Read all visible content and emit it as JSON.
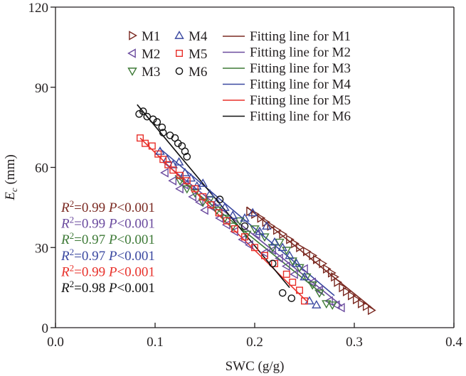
{
  "chart_data": {
    "type": "scatter",
    "title": "",
    "xlabel": "SWC (g/g)",
    "ylabel_main": "E",
    "ylabel_sub": "c",
    "ylabel_unit": " (mm)",
    "xlim": [
      0.0,
      0.4
    ],
    "ylim": [
      0,
      120
    ],
    "xticks": [
      0.0,
      0.1,
      0.2,
      0.3,
      0.4
    ],
    "xtick_labels": [
      "0.0",
      "0.1",
      "0.2",
      "0.3",
      "0.4"
    ],
    "yticks": [
      0,
      30,
      60,
      90,
      120
    ],
    "ytick_labels": [
      "0",
      "30",
      "60",
      "90",
      "120"
    ],
    "grid": false,
    "legend_position": "top-center",
    "series": [
      {
        "name": "M1",
        "marker": "triangle-right",
        "color": "#7b2a22",
        "fit_label": "Fitting line for M1",
        "fit_line": [
          [
            0.192,
            45.2
          ],
          [
            0.321,
            6.4
          ]
        ],
        "stats": {
          "r2": "0.99",
          "p": "0.001"
        },
        "points": [
          [
            0.195,
            43.5
          ],
          [
            0.2,
            42.5
          ],
          [
            0.206,
            41
          ],
          [
            0.211,
            39.5
          ],
          [
            0.216,
            38
          ],
          [
            0.222,
            36.5
          ],
          [
            0.228,
            35
          ],
          [
            0.235,
            33
          ],
          [
            0.24,
            31.5
          ],
          [
            0.245,
            30
          ],
          [
            0.252,
            28.5
          ],
          [
            0.258,
            27
          ],
          [
            0.262,
            25.5
          ],
          [
            0.268,
            24
          ],
          [
            0.272,
            22
          ],
          [
            0.277,
            20.5
          ],
          [
            0.28,
            19
          ],
          [
            0.283,
            17
          ],
          [
            0.288,
            15
          ],
          [
            0.292,
            13.5
          ],
          [
            0.297,
            12
          ],
          [
            0.302,
            10.5
          ],
          [
            0.307,
            9
          ],
          [
            0.312,
            8
          ],
          [
            0.317,
            6.5
          ]
        ]
      },
      {
        "name": "M2",
        "marker": "triangle-left",
        "color": "#6a4a9e",
        "fit_label": "Fitting line for M2",
        "fit_line": [
          [
            0.108,
            62
          ],
          [
            0.288,
            8
          ]
        ],
        "stats": {
          "r2": "0.99",
          "p": "0.001"
        },
        "points": [
          [
            0.11,
            58
          ],
          [
            0.118,
            55
          ],
          [
            0.125,
            52
          ],
          [
            0.13,
            53.5
          ],
          [
            0.138,
            49
          ],
          [
            0.145,
            47
          ],
          [
            0.15,
            44
          ],
          [
            0.158,
            45
          ],
          [
            0.165,
            41
          ],
          [
            0.172,
            38.5
          ],
          [
            0.18,
            36
          ],
          [
            0.188,
            33
          ],
          [
            0.195,
            31
          ],
          [
            0.202,
            35
          ],
          [
            0.21,
            28
          ],
          [
            0.218,
            29
          ],
          [
            0.225,
            26
          ],
          [
            0.232,
            23
          ],
          [
            0.24,
            20
          ],
          [
            0.25,
            22
          ],
          [
            0.258,
            17
          ],
          [
            0.265,
            14
          ],
          [
            0.275,
            10
          ],
          [
            0.282,
            8.5
          ],
          [
            0.287,
            7.5
          ]
        ]
      },
      {
        "name": "M3",
        "marker": "triangle-down",
        "color": "#3e7a37",
        "fit_label": "Fitting line for M3",
        "fit_line": [
          [
            0.12,
            57
          ],
          [
            0.27,
            12
          ]
        ],
        "stats": {
          "r2": "0.97",
          "p": "0.001"
        },
        "points": [
          [
            0.125,
            55
          ],
          [
            0.132,
            52
          ],
          [
            0.14,
            50.5
          ],
          [
            0.148,
            47
          ],
          [
            0.155,
            48
          ],
          [
            0.162,
            44
          ],
          [
            0.17,
            41
          ],
          [
            0.178,
            38
          ],
          [
            0.185,
            40
          ],
          [
            0.192,
            35
          ],
          [
            0.2,
            37
          ],
          [
            0.21,
            34
          ],
          [
            0.218,
            30
          ],
          [
            0.225,
            32
          ],
          [
            0.232,
            29
          ],
          [
            0.238,
            25
          ],
          [
            0.245,
            22.5
          ],
          [
            0.252,
            19
          ],
          [
            0.258,
            16
          ],
          [
            0.265,
            13
          ],
          [
            0.272,
            9
          ],
          [
            0.278,
            8.5
          ]
        ]
      },
      {
        "name": "M4",
        "marker": "triangle-up",
        "color": "#3a48a0",
        "fit_label": "Fitting line for M4",
        "fit_line": [
          [
            0.105,
            67
          ],
          [
            0.28,
            12
          ]
        ],
        "stats": {
          "r2": "0.97",
          "p": "0.001"
        },
        "points": [
          [
            0.105,
            66
          ],
          [
            0.112,
            63
          ],
          [
            0.118,
            61
          ],
          [
            0.124,
            62
          ],
          [
            0.13,
            58
          ],
          [
            0.136,
            56
          ],
          [
            0.142,
            53
          ],
          [
            0.148,
            54
          ],
          [
            0.155,
            50
          ],
          [
            0.162,
            47
          ],
          [
            0.17,
            45
          ],
          [
            0.178,
            42
          ],
          [
            0.19,
            41
          ],
          [
            0.198,
            43
          ],
          [
            0.205,
            36
          ],
          [
            0.212,
            38
          ],
          [
            0.22,
            32
          ],
          [
            0.228,
            30
          ],
          [
            0.235,
            27
          ],
          [
            0.242,
            24
          ],
          [
            0.25,
            19
          ],
          [
            0.255,
            10
          ],
          [
            0.262,
            8.5
          ]
        ]
      },
      {
        "name": "M5",
        "marker": "square",
        "color": "#e8302a",
        "fit_label": "Fitting line for M5",
        "fit_line": [
          [
            0.085,
            71
          ],
          [
            0.252,
            10
          ]
        ],
        "stats": {
          "r2": "0.99",
          "p": "0.001"
        },
        "points": [
          [
            0.085,
            71
          ],
          [
            0.09,
            69
          ],
          [
            0.097,
            68
          ],
          [
            0.103,
            65
          ],
          [
            0.108,
            63
          ],
          [
            0.113,
            61
          ],
          [
            0.118,
            59
          ],
          [
            0.125,
            57
          ],
          [
            0.132,
            55
          ],
          [
            0.14,
            52
          ],
          [
            0.148,
            49
          ],
          [
            0.156,
            46
          ],
          [
            0.164,
            43
          ],
          [
            0.172,
            40
          ],
          [
            0.18,
            37
          ],
          [
            0.19,
            34
          ],
          [
            0.2,
            30
          ],
          [
            0.21,
            27
          ],
          [
            0.22,
            24
          ],
          [
            0.232,
            20
          ],
          [
            0.238,
            17
          ],
          [
            0.245,
            14
          ],
          [
            0.25,
            10
          ]
        ]
      },
      {
        "name": "M6",
        "marker": "circle",
        "color": "#111111",
        "fit_label": "Fitting line for M6",
        "fit_line": [
          [
            0.082,
            83.5
          ],
          [
            0.235,
            15
          ]
        ],
        "stats": {
          "r2": "0.98",
          "p": "0.001"
        },
        "points": [
          [
            0.084,
            80
          ],
          [
            0.088,
            81
          ],
          [
            0.092,
            79
          ],
          [
            0.098,
            78
          ],
          [
            0.102,
            77
          ],
          [
            0.107,
            75
          ],
          [
            0.108,
            73
          ],
          [
            0.115,
            72
          ],
          [
            0.12,
            71
          ],
          [
            0.123,
            69
          ],
          [
            0.127,
            68
          ],
          [
            0.13,
            66
          ],
          [
            0.132,
            64
          ],
          [
            0.165,
            48
          ],
          [
            0.19,
            38
          ],
          [
            0.218,
            24
          ],
          [
            0.228,
            13
          ],
          [
            0.237,
            11
          ]
        ]
      }
    ]
  },
  "stat_labels": {
    "r": "R",
    "sup": "2",
    "eq": "=",
    "p": "P",
    "lt": "<"
  }
}
